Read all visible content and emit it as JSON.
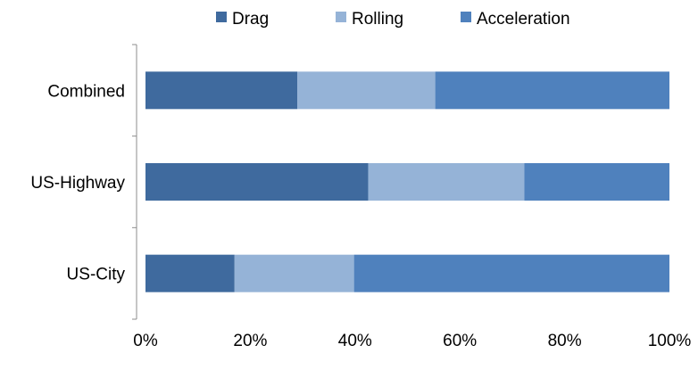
{
  "chart_data": {
    "type": "bar",
    "orientation": "horizontal",
    "stacked": "percent",
    "categories": [
      "Combined",
      "US-Highway",
      "US-City"
    ],
    "series": [
      {
        "name": "Drag",
        "color": "#3f6a9e",
        "values": [
          29,
          42.5,
          17
        ]
      },
      {
        "name": "Rolling",
        "color": "#95b3d7",
        "values": [
          26.3,
          29.8,
          22.8
        ]
      },
      {
        "name": "Acceleration",
        "color": "#4f81bd",
        "values": [
          44.7,
          27.7,
          60.2
        ]
      }
    ],
    "xlim": [
      0,
      100
    ],
    "xticks": [
      "0%",
      "20%",
      "40%",
      "60%",
      "80%",
      "100%"
    ],
    "legend_position": "top",
    "grid": false
  }
}
